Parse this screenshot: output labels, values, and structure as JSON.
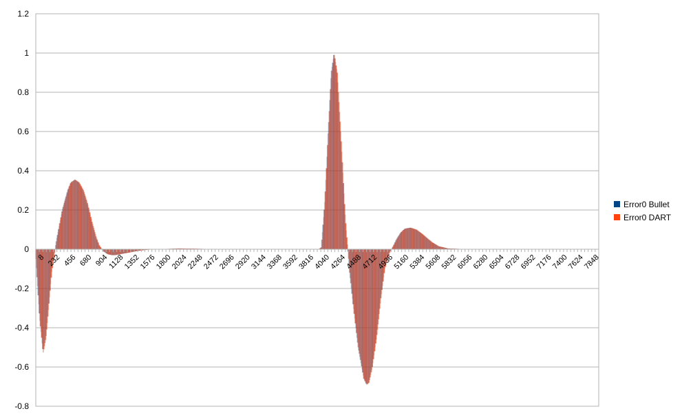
{
  "chart_data": {
    "type": "bar",
    "title": "",
    "xlabel": "",
    "ylabel": "",
    "ylim": [
      -0.8,
      1.2
    ],
    "y_ticks": [
      "1.2",
      "1",
      "0.8",
      "0.6",
      "0.4",
      "0.2",
      "0",
      "-0.2",
      "-0.4",
      "-0.6",
      "-0.8"
    ],
    "y_tick_values": [
      1.2,
      1.0,
      0.8,
      0.6,
      0.4,
      0.2,
      0,
      -0.2,
      -0.4,
      -0.6,
      -0.8
    ],
    "x_tick_labels": [
      "8",
      "232",
      "456",
      "680",
      "904",
      "1128",
      "1352",
      "1576",
      "1800",
      "2024",
      "2248",
      "2472",
      "2696",
      "2920",
      "3144",
      "3368",
      "3592",
      "3816",
      "4040",
      "4264",
      "4488",
      "4712",
      "4936",
      "5160",
      "5384",
      "5608",
      "5832",
      "6056",
      "6280",
      "6504",
      "6728",
      "6952",
      "7176",
      "7400",
      "7624",
      "7848"
    ],
    "x_range": [
      8,
      7960
    ],
    "grid": "horizontal",
    "legend_position": "right",
    "series": [
      {
        "name": "Error0 Bullet",
        "color": "#004586",
        "x": [
          8,
          60,
          110,
          150,
          230,
          300,
          380,
          456,
          500,
          560,
          620,
          680,
          740,
          800,
          860,
          904,
          960,
          1020,
          1080,
          1128,
          1200,
          1280,
          1352,
          1450,
          1576,
          1700,
          1800,
          2024,
          2248,
          2472,
          2696,
          3000,
          3500,
          4000,
          4040,
          4090,
          4140,
          4180,
          4220,
          4264,
          4320,
          4380,
          4440,
          4488,
          4560,
          4640,
          4680,
          4712,
          4760,
          4820,
          4880,
          4936,
          5000,
          5060,
          5100,
          5160,
          5220,
          5300,
          5384,
          5460,
          5540,
          5608,
          5700,
          5832,
          6056,
          6500,
          7000,
          7500,
          7960
        ],
        "values": [
          -0.05,
          -0.35,
          -0.53,
          -0.45,
          -0.12,
          0.05,
          0.2,
          0.3,
          0.34,
          0.355,
          0.34,
          0.3,
          0.23,
          0.14,
          0.06,
          0.02,
          -0.01,
          -0.025,
          -0.03,
          -0.03,
          -0.025,
          -0.02,
          -0.015,
          -0.008,
          -0.003,
          0.0,
          0.001,
          0.004,
          0.003,
          0.001,
          0.0,
          0.0,
          0.0,
          0.0,
          0.01,
          0.25,
          0.62,
          0.9,
          1.0,
          0.9,
          0.55,
          0.15,
          -0.12,
          -0.28,
          -0.5,
          -0.66,
          -0.69,
          -0.68,
          -0.6,
          -0.45,
          -0.25,
          -0.1,
          -0.02,
          0.02,
          0.05,
          0.085,
          0.105,
          0.11,
          0.1,
          0.08,
          0.055,
          0.035,
          0.015,
          0.004,
          0.001,
          0.0,
          0.0,
          0.0,
          0.0
        ]
      },
      {
        "name": "Error0 DART",
        "color": "#ff420e",
        "x": [
          8,
          60,
          110,
          150,
          230,
          300,
          380,
          456,
          500,
          560,
          620,
          680,
          740,
          800,
          860,
          904,
          960,
          1020,
          1080,
          1128,
          1200,
          1280,
          1352,
          1450,
          1576,
          1700,
          1800,
          2024,
          2248,
          2472,
          2696,
          3000,
          3500,
          4000,
          4040,
          4090,
          4140,
          4180,
          4220,
          4264,
          4320,
          4380,
          4440,
          4488,
          4560,
          4640,
          4680,
          4712,
          4760,
          4820,
          4880,
          4936,
          5000,
          5060,
          5100,
          5160,
          5220,
          5300,
          5384,
          5460,
          5540,
          5608,
          5700,
          5832,
          6056,
          6500,
          7000,
          7500,
          7960
        ],
        "values": [
          -0.05,
          -0.35,
          -0.53,
          -0.45,
          -0.12,
          0.05,
          0.2,
          0.3,
          0.34,
          0.355,
          0.34,
          0.3,
          0.23,
          0.14,
          0.06,
          0.02,
          -0.01,
          -0.025,
          -0.03,
          -0.03,
          -0.025,
          -0.02,
          -0.015,
          -0.008,
          -0.003,
          0.0,
          0.001,
          0.004,
          0.003,
          0.001,
          0.0,
          0.0,
          0.0,
          0.0,
          0.01,
          0.25,
          0.62,
          0.9,
          1.0,
          0.9,
          0.55,
          0.15,
          -0.12,
          -0.28,
          -0.5,
          -0.66,
          -0.69,
          -0.68,
          -0.6,
          -0.45,
          -0.25,
          -0.1,
          -0.02,
          0.02,
          0.05,
          0.085,
          0.105,
          0.11,
          0.1,
          0.08,
          0.055,
          0.035,
          0.015,
          0.004,
          0.001,
          0.0,
          0.0,
          0.0,
          0.0
        ]
      }
    ]
  }
}
